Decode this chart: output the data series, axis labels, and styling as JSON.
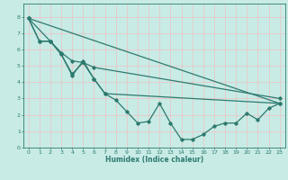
{
  "xlabel": "Humidex (Indice chaleur)",
  "background_color": "#c8ebe6",
  "grid_color": "#e8c8c8",
  "line_color": "#2d7a6e",
  "xlim": [
    -0.5,
    23.5
  ],
  "ylim": [
    0,
    8.8
  ],
  "xticks": [
    0,
    1,
    2,
    3,
    4,
    5,
    6,
    7,
    8,
    9,
    10,
    11,
    12,
    13,
    14,
    15,
    16,
    17,
    18,
    19,
    20,
    21,
    22,
    23
  ],
  "yticks": [
    0,
    1,
    2,
    3,
    4,
    5,
    6,
    7,
    8
  ],
  "line1_x": [
    0,
    1,
    2,
    3,
    4,
    5,
    6,
    7,
    8,
    9,
    10,
    11,
    12,
    13,
    14,
    15,
    16,
    17,
    18,
    19,
    20,
    21,
    22,
    23
  ],
  "line1_y": [
    7.9,
    6.5,
    6.5,
    5.7,
    4.5,
    5.2,
    4.2,
    3.3,
    2.9,
    2.2,
    1.5,
    1.6,
    2.7,
    1.5,
    0.5,
    0.5,
    0.8,
    1.3,
    1.5,
    1.5,
    2.1,
    1.7,
    2.4,
    2.7
  ],
  "line2_x": [
    0,
    1,
    2,
    3,
    4,
    5,
    6,
    7,
    23
  ],
  "line2_y": [
    7.9,
    6.5,
    6.5,
    5.7,
    4.4,
    5.3,
    4.2,
    3.3,
    2.7
  ],
  "line3_x": [
    0,
    2,
    3,
    4,
    5,
    6,
    23
  ],
  "line3_y": [
    7.9,
    6.5,
    5.8,
    5.3,
    5.2,
    4.9,
    3.0
  ],
  "line4_x": [
    0,
    23
  ],
  "line4_y": [
    7.9,
    2.7
  ]
}
